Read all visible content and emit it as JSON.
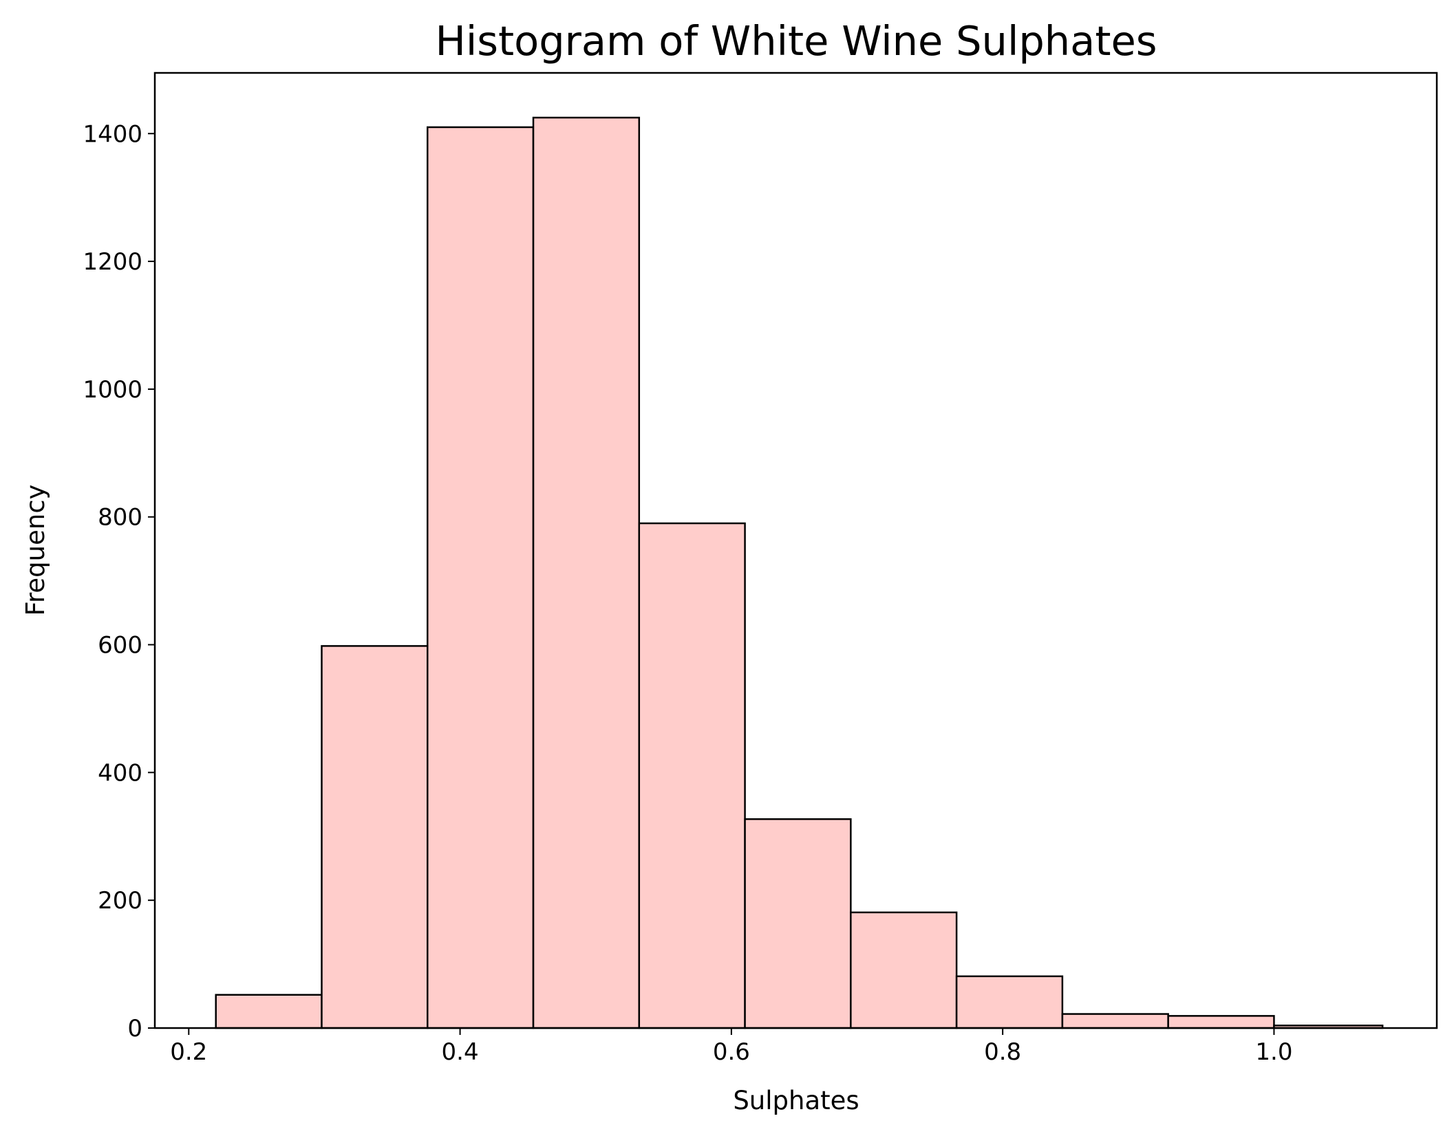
{
  "chart_data": {
    "type": "bar",
    "title": "Histogram of White Wine Sulphates",
    "xlabel": "Sulphates",
    "ylabel": "Frequency",
    "xlim": [
      0.175,
      1.12
    ],
    "ylim": [
      0,
      1495
    ],
    "bin_edges": [
      0.22,
      0.298,
      0.376,
      0.454,
      0.532,
      0.61,
      0.688,
      0.766,
      0.844,
      0.922,
      1.0,
      1.08
    ],
    "values": [
      52,
      598,
      1410,
      1425,
      790,
      327,
      181,
      81,
      22,
      19,
      4
    ],
    "x_ticks": [
      {
        "value": 0.2,
        "label": "0.2"
      },
      {
        "value": 0.4,
        "label": "0.4"
      },
      {
        "value": 0.6,
        "label": "0.6"
      },
      {
        "value": 0.8,
        "label": "0.8"
      },
      {
        "value": 1.0,
        "label": "1.0"
      }
    ],
    "y_ticks": [
      {
        "value": 0,
        "label": "0"
      },
      {
        "value": 200,
        "label": "200"
      },
      {
        "value": 400,
        "label": "400"
      },
      {
        "value": 600,
        "label": "600"
      },
      {
        "value": 800,
        "label": "800"
      },
      {
        "value": 1000,
        "label": "1000"
      },
      {
        "value": 1200,
        "label": "1200"
      },
      {
        "value": 1400,
        "label": "1400"
      }
    ],
    "grid": false,
    "bar_color": "#ffcdcb",
    "edge_color": "#000000"
  }
}
